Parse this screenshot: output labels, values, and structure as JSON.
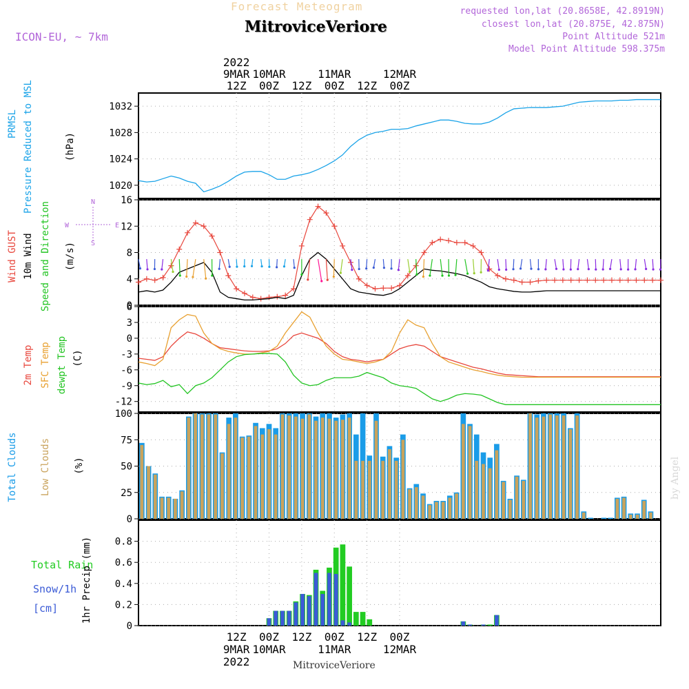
{
  "header": {
    "title": "Forecast Meteogram",
    "location": "MitroviceVeriore",
    "model": "ICON-EU, ~ 7km",
    "info": [
      "requested lon,lat (20.8658E, 42.8919N)",
      "closest lon,lat (20.875E, 42.875N)",
      "Point Altitude 521m",
      "Model Point Altitude 598.375m"
    ]
  },
  "footer": {
    "location": "MitroviceVeriore"
  },
  "watermark": "by Angel",
  "colors": {
    "pressure": "#1aa3e8",
    "gust": "#e8463c",
    "wind": "#000000",
    "sfc": "#e8a030",
    "dewpt": "#22c422",
    "total_cloud": "#1a9ce8",
    "low_cloud": "#c9a35c",
    "rain": "#22cc22",
    "snow": "#3b5bd6",
    "meta": "#b266d9"
  },
  "chart_data": [
    {
      "type": "line",
      "name": "pressure",
      "ylabel_lines": [
        "PRMSL",
        "Pressure Reduced to MSL",
        "(hPa)"
      ],
      "ylim": [
        1018,
        1034
      ],
      "yticks": [
        1020,
        1024,
        1028,
        1032
      ],
      "x": [
        0,
        3,
        6,
        9,
        12,
        15,
        18,
        21,
        24,
        27,
        30,
        33,
        36,
        39,
        42,
        45,
        48,
        51,
        54,
        57,
        60,
        63,
        66,
        69,
        72,
        75,
        78,
        81,
        84,
        87,
        90,
        93,
        96,
        99,
        102,
        105,
        108,
        111,
        114,
        117,
        120,
        123,
        126,
        129,
        132,
        135,
        138,
        141,
        144,
        147,
        150,
        153,
        156,
        159,
        162,
        165,
        168,
        171,
        174,
        177,
        180,
        183,
        186,
        189,
        192
      ],
      "values": [
        1020.7,
        1020.5,
        1020.6,
        1021.0,
        1021.4,
        1021.1,
        1020.6,
        1020.3,
        1019.0,
        1019.4,
        1019.9,
        1020.6,
        1021.4,
        1022.0,
        1022.1,
        1022.1,
        1021.6,
        1020.9,
        1020.9,
        1021.4,
        1021.6,
        1021.9,
        1022.4,
        1023.0,
        1023.7,
        1024.6,
        1025.9,
        1026.9,
        1027.6,
        1028.0,
        1028.2,
        1028.5,
        1028.5,
        1028.6,
        1029.0,
        1029.3,
        1029.6,
        1029.9,
        1029.9,
        1029.7,
        1029.4,
        1029.3,
        1029.3,
        1029.6,
        1030.2,
        1031.0,
        1031.6,
        1031.7,
        1031.8,
        1031.8,
        1031.8,
        1031.9,
        1032.0,
        1032.3,
        1032.6,
        1032.7,
        1032.8,
        1032.8,
        1032.8,
        1032.9,
        1032.9,
        1033.0,
        1033.0,
        1033.0,
        1033.0
      ]
    },
    {
      "type": "line",
      "name": "wind",
      "ylabel_lines": [
        "Wind GUST",
        "10m Wind",
        "Speed and Direction",
        "(m/s)"
      ],
      "compass": [
        "N",
        "E",
        "S",
        "W"
      ],
      "ylim": [
        0,
        16
      ],
      "yticks": [
        0,
        4,
        8,
        12,
        16
      ],
      "x": [
        0,
        3,
        6,
        9,
        12,
        15,
        18,
        21,
        24,
        27,
        30,
        33,
        36,
        39,
        42,
        45,
        48,
        51,
        54,
        57,
        60,
        63,
        66,
        69,
        72,
        75,
        78,
        81,
        84,
        87,
        90,
        93,
        96,
        99,
        102,
        105,
        108,
        111,
        114,
        117,
        120,
        123,
        126,
        129,
        132,
        135,
        138,
        141,
        144,
        147,
        150,
        153,
        156,
        159,
        162,
        165,
        168,
        171,
        174,
        177,
        180,
        183,
        186,
        189,
        192
      ],
      "series": [
        {
          "name": "Wind GUST",
          "values": [
            3.5,
            4.0,
            3.8,
            4.2,
            6.0,
            8.5,
            11.0,
            12.5,
            12.0,
            10.5,
            8.0,
            4.5,
            2.5,
            1.8,
            1.2,
            1.0,
            1.2,
            1.3,
            1.5,
            2.5,
            9.0,
            13.0,
            15.0,
            14.0,
            12.0,
            9.0,
            6.5,
            4.0,
            3.0,
            2.5,
            2.6,
            2.6,
            3.0,
            4.5,
            6.0,
            8.0,
            9.5,
            10.0,
            9.8,
            9.5,
            9.5,
            9.0,
            8.0,
            5.5,
            4.5,
            4.0,
            3.8,
            3.5,
            3.5,
            3.7,
            3.8,
            3.8,
            3.8,
            3.8,
            3.8,
            3.8,
            3.8,
            3.8,
            3.8,
            3.8,
            3.8,
            3.8,
            3.8,
            3.8,
            3.8
          ]
        },
        {
          "name": "10m Wind",
          "values": [
            2.0,
            2.2,
            2.0,
            2.3,
            3.5,
            5.0,
            5.5,
            6.0,
            6.5,
            5.0,
            2.0,
            1.2,
            1.0,
            0.8,
            0.8,
            0.9,
            1.0,
            1.2,
            1.0,
            1.5,
            4.5,
            7.0,
            8.0,
            7.0,
            5.5,
            4.0,
            2.5,
            2.0,
            1.8,
            1.6,
            1.5,
            1.8,
            2.5,
            3.5,
            4.5,
            5.5,
            5.3,
            5.2,
            5.0,
            4.8,
            4.5,
            4.0,
            3.5,
            2.8,
            2.5,
            2.3,
            2.1,
            2.0,
            2.0,
            2.1,
            2.2,
            2.2,
            2.2,
            2.2,
            2.2,
            2.2,
            2.2,
            2.2,
            2.2,
            2.2,
            2.2,
            2.2,
            2.2,
            2.2,
            2.2
          ]
        }
      ]
    },
    {
      "type": "line",
      "name": "temperature",
      "ylabel_lines": [
        "2m Temp",
        "SFC Temp",
        "dewpt Temp",
        "(C)"
      ],
      "ylim": [
        -14,
        6
      ],
      "yticks": [
        -12,
        -9,
        -6,
        -3,
        0,
        3,
        6
      ],
      "x": [
        0,
        3,
        6,
        9,
        12,
        15,
        18,
        21,
        24,
        27,
        30,
        33,
        36,
        39,
        42,
        45,
        48,
        51,
        54,
        57,
        60,
        63,
        66,
        69,
        72,
        75,
        78,
        81,
        84,
        87,
        90,
        93,
        96,
        99,
        102,
        105,
        108,
        111,
        114,
        117,
        120,
        123,
        126,
        129,
        132,
        135,
        138,
        141,
        144,
        147,
        150,
        153,
        156,
        159,
        162,
        165,
        168,
        171,
        174,
        177,
        180,
        183,
        186,
        189,
        192
      ],
      "series": [
        {
          "name": "2m Temp",
          "values": [
            -3.8,
            -4.0,
            -4.2,
            -3.5,
            -1.5,
            0.0,
            1.2,
            0.8,
            0.0,
            -1.0,
            -1.8,
            -2.0,
            -2.2,
            -2.4,
            -2.5,
            -2.5,
            -2.4,
            -2.0,
            -1.0,
            0.5,
            1.0,
            0.5,
            0.0,
            -1.0,
            -2.5,
            -3.5,
            -4.0,
            -4.2,
            -4.5,
            -4.2,
            -4.0,
            -3.0,
            -2.0,
            -1.5,
            -1.2,
            -1.5,
            -2.5,
            -3.5,
            -4.0,
            -4.5,
            -5.0,
            -5.5,
            -5.8,
            -6.2,
            -6.6,
            -6.9,
            -7.0,
            -7.1,
            -7.2,
            -7.3,
            -7.3,
            -7.3,
            -7.3,
            -7.3,
            -7.3,
            -7.3,
            -7.3,
            -7.3,
            -7.3,
            -7.3,
            -7.3,
            -7.3,
            -7.3,
            -7.3,
            -7.3
          ]
        },
        {
          "name": "SFC Temp",
          "values": [
            -4.5,
            -4.8,
            -5.2,
            -4.0,
            2.0,
            3.5,
            4.5,
            4.2,
            1.0,
            -1.0,
            -2.0,
            -2.5,
            -2.8,
            -3.0,
            -3.0,
            -2.8,
            -2.5,
            -1.5,
            1.0,
            3.0,
            5.0,
            4.0,
            1.0,
            -1.5,
            -3.0,
            -4.0,
            -4.2,
            -4.5,
            -4.8,
            -4.5,
            -4.0,
            -2.5,
            1.0,
            3.5,
            2.5,
            2.0,
            -1.0,
            -3.5,
            -4.5,
            -5.0,
            -5.5,
            -6.0,
            -6.3,
            -6.7,
            -7.0,
            -7.2,
            -7.3,
            -7.4,
            -7.4,
            -7.4,
            -7.4,
            -7.4,
            -7.4,
            -7.4,
            -7.4,
            -7.4,
            -7.4,
            -7.4,
            -7.4,
            -7.4,
            -7.4,
            -7.4,
            -7.4,
            -7.4,
            -7.4
          ]
        },
        {
          "name": "dewpt Temp",
          "values": [
            -8.5,
            -8.8,
            -8.6,
            -8.0,
            -9.2,
            -8.8,
            -10.5,
            -9.0,
            -8.5,
            -7.5,
            -6.0,
            -4.5,
            -3.5,
            -3.1,
            -3.0,
            -2.9,
            -2.9,
            -3.0,
            -4.5,
            -7.0,
            -8.5,
            -9.0,
            -8.8,
            -8.0,
            -7.5,
            -7.5,
            -7.5,
            -7.2,
            -6.5,
            -7.0,
            -7.5,
            -8.5,
            -9.0,
            -9.2,
            -9.5,
            -10.5,
            -11.5,
            -12.0,
            -11.5,
            -10.8,
            -10.5,
            -10.6,
            -10.8,
            -11.5,
            -12.2,
            -12.6,
            -12.6,
            -12.6,
            -12.6,
            -12.6,
            -12.6,
            -12.6,
            -12.6,
            -12.6,
            -12.6,
            -12.6,
            -12.6,
            -12.6,
            -12.6,
            -12.6,
            -12.6,
            -12.6,
            -12.6,
            -12.6,
            -12.6
          ]
        }
      ]
    },
    {
      "type": "bar",
      "name": "clouds",
      "ylabel_lines": [
        "Total Clouds",
        "Low Clouds",
        "(%)"
      ],
      "ylim": [
        0,
        100
      ],
      "yticks": [
        0,
        25,
        50,
        75,
        100
      ],
      "series": [
        {
          "name": "Total Clouds",
          "values": [
            72,
            50,
            43,
            21,
            21,
            19,
            27,
            97,
            100,
            100,
            100,
            100,
            63,
            96,
            100,
            78,
            79,
            91,
            86,
            90,
            86,
            100,
            100,
            100,
            100,
            100,
            97,
            100,
            100,
            96,
            99,
            100,
            80,
            100,
            60,
            100,
            59,
            69,
            58,
            80,
            29,
            33,
            24,
            14,
            17,
            17,
            22,
            25,
            100,
            90,
            80,
            63,
            58,
            71,
            36,
            19,
            41,
            37,
            100,
            99,
            100,
            100,
            100,
            100,
            86,
            100,
            7,
            1,
            0,
            1,
            1,
            20,
            21,
            5,
            5,
            18,
            7,
            0
          ]
        },
        {
          "name": "Low Clouds",
          "values": [
            70,
            50,
            42,
            20,
            20,
            19,
            26,
            96,
            100,
            99,
            99,
            99,
            62,
            90,
            96,
            77,
            78,
            88,
            80,
            85,
            80,
            99,
            98,
            97,
            95,
            99,
            93,
            96,
            95,
            93,
            94,
            96,
            55,
            55,
            55,
            93,
            55,
            66,
            55,
            75,
            28,
            30,
            22,
            13,
            16,
            16,
            20,
            24,
            90,
            88,
            55,
            52,
            48,
            65,
            35,
            18,
            40,
            36,
            100,
            96,
            97,
            99,
            98,
            98,
            85,
            98,
            6,
            0,
            0,
            0,
            0,
            19,
            20,
            4,
            4,
            17,
            6,
            0
          ]
        }
      ]
    },
    {
      "type": "bar",
      "name": "precip",
      "ylabel_lines": [
        "Total Rain",
        "Snow/1h",
        "[cm]",
        "1hr Precip (mm)"
      ],
      "ylim": [
        0,
        1.0
      ],
      "yticks": [
        0,
        0.2,
        0.4,
        0.6,
        0.8
      ],
      "bottom_ticks": [
        {
          "t": 36,
          "lines": [
            "12Z",
            "9MAR",
            "2022"
          ]
        },
        {
          "t": 48,
          "lines": [
            "00Z",
            "10MAR"
          ]
        },
        {
          "t": 60,
          "lines": [
            "12Z"
          ]
        },
        {
          "t": 72,
          "lines": [
            "00Z",
            "11MAR"
          ]
        },
        {
          "t": 84,
          "lines": [
            "12Z"
          ]
        },
        {
          "t": 96,
          "lines": [
            "00Z",
            "12MAR"
          ]
        }
      ],
      "series": [
        {
          "name": "Total Rain",
          "values": [
            0,
            0,
            0,
            0,
            0,
            0,
            0,
            0,
            0,
            0,
            0,
            0,
            0,
            0,
            0,
            0,
            0,
            0,
            0,
            0.07,
            0.14,
            0.14,
            0.14,
            0.23,
            0.3,
            0.29,
            0.53,
            0.33,
            0.55,
            0.74,
            0.77,
            0.56,
            0.13,
            0.13,
            0.06,
            0,
            0,
            0,
            0,
            0,
            0,
            0,
            0,
            0,
            0,
            0,
            0,
            0,
            0.04,
            0.01,
            0,
            0.01,
            0.01,
            0.1,
            0,
            0,
            0,
            0,
            0,
            0,
            0,
            0,
            0,
            0,
            0,
            0,
            0,
            0,
            0,
            0,
            0,
            0,
            0,
            0,
            0,
            0,
            0,
            0
          ]
        },
        {
          "name": "Snow/1h",
          "values": [
            0,
            0,
            0,
            0,
            0,
            0,
            0,
            0,
            0,
            0,
            0,
            0,
            0,
            0,
            0,
            0,
            0,
            0,
            0,
            0.07,
            0.14,
            0.14,
            0.14,
            0.22,
            0.3,
            0.28,
            0.5,
            0.3,
            0.5,
            0.49,
            0.05,
            0.03,
            0.0,
            0,
            0,
            0,
            0,
            0,
            0,
            0,
            0,
            0,
            0,
            0,
            0,
            0,
            0,
            0,
            0.04,
            0.01,
            0,
            0.01,
            0,
            0.1,
            0,
            0,
            0,
            0,
            0,
            0,
            0,
            0,
            0,
            0,
            0,
            0,
            0,
            0,
            0,
            0,
            0,
            0,
            0,
            0,
            0,
            0,
            0,
            0
          ]
        }
      ]
    }
  ],
  "top_ticks": [
    {
      "t": 36,
      "lines": [
        "2022",
        "9MAR",
        "12Z"
      ]
    },
    {
      "t": 48,
      "lines": [
        "10MAR",
        "00Z"
      ]
    },
    {
      "t": 60,
      "lines": [
        "12Z"
      ]
    },
    {
      "t": 72,
      "lines": [
        "11MAR",
        "00Z"
      ]
    },
    {
      "t": 84,
      "lines": [
        "12Z"
      ]
    },
    {
      "t": 96,
      "lines": [
        "12MAR",
        "00Z"
      ]
    }
  ]
}
